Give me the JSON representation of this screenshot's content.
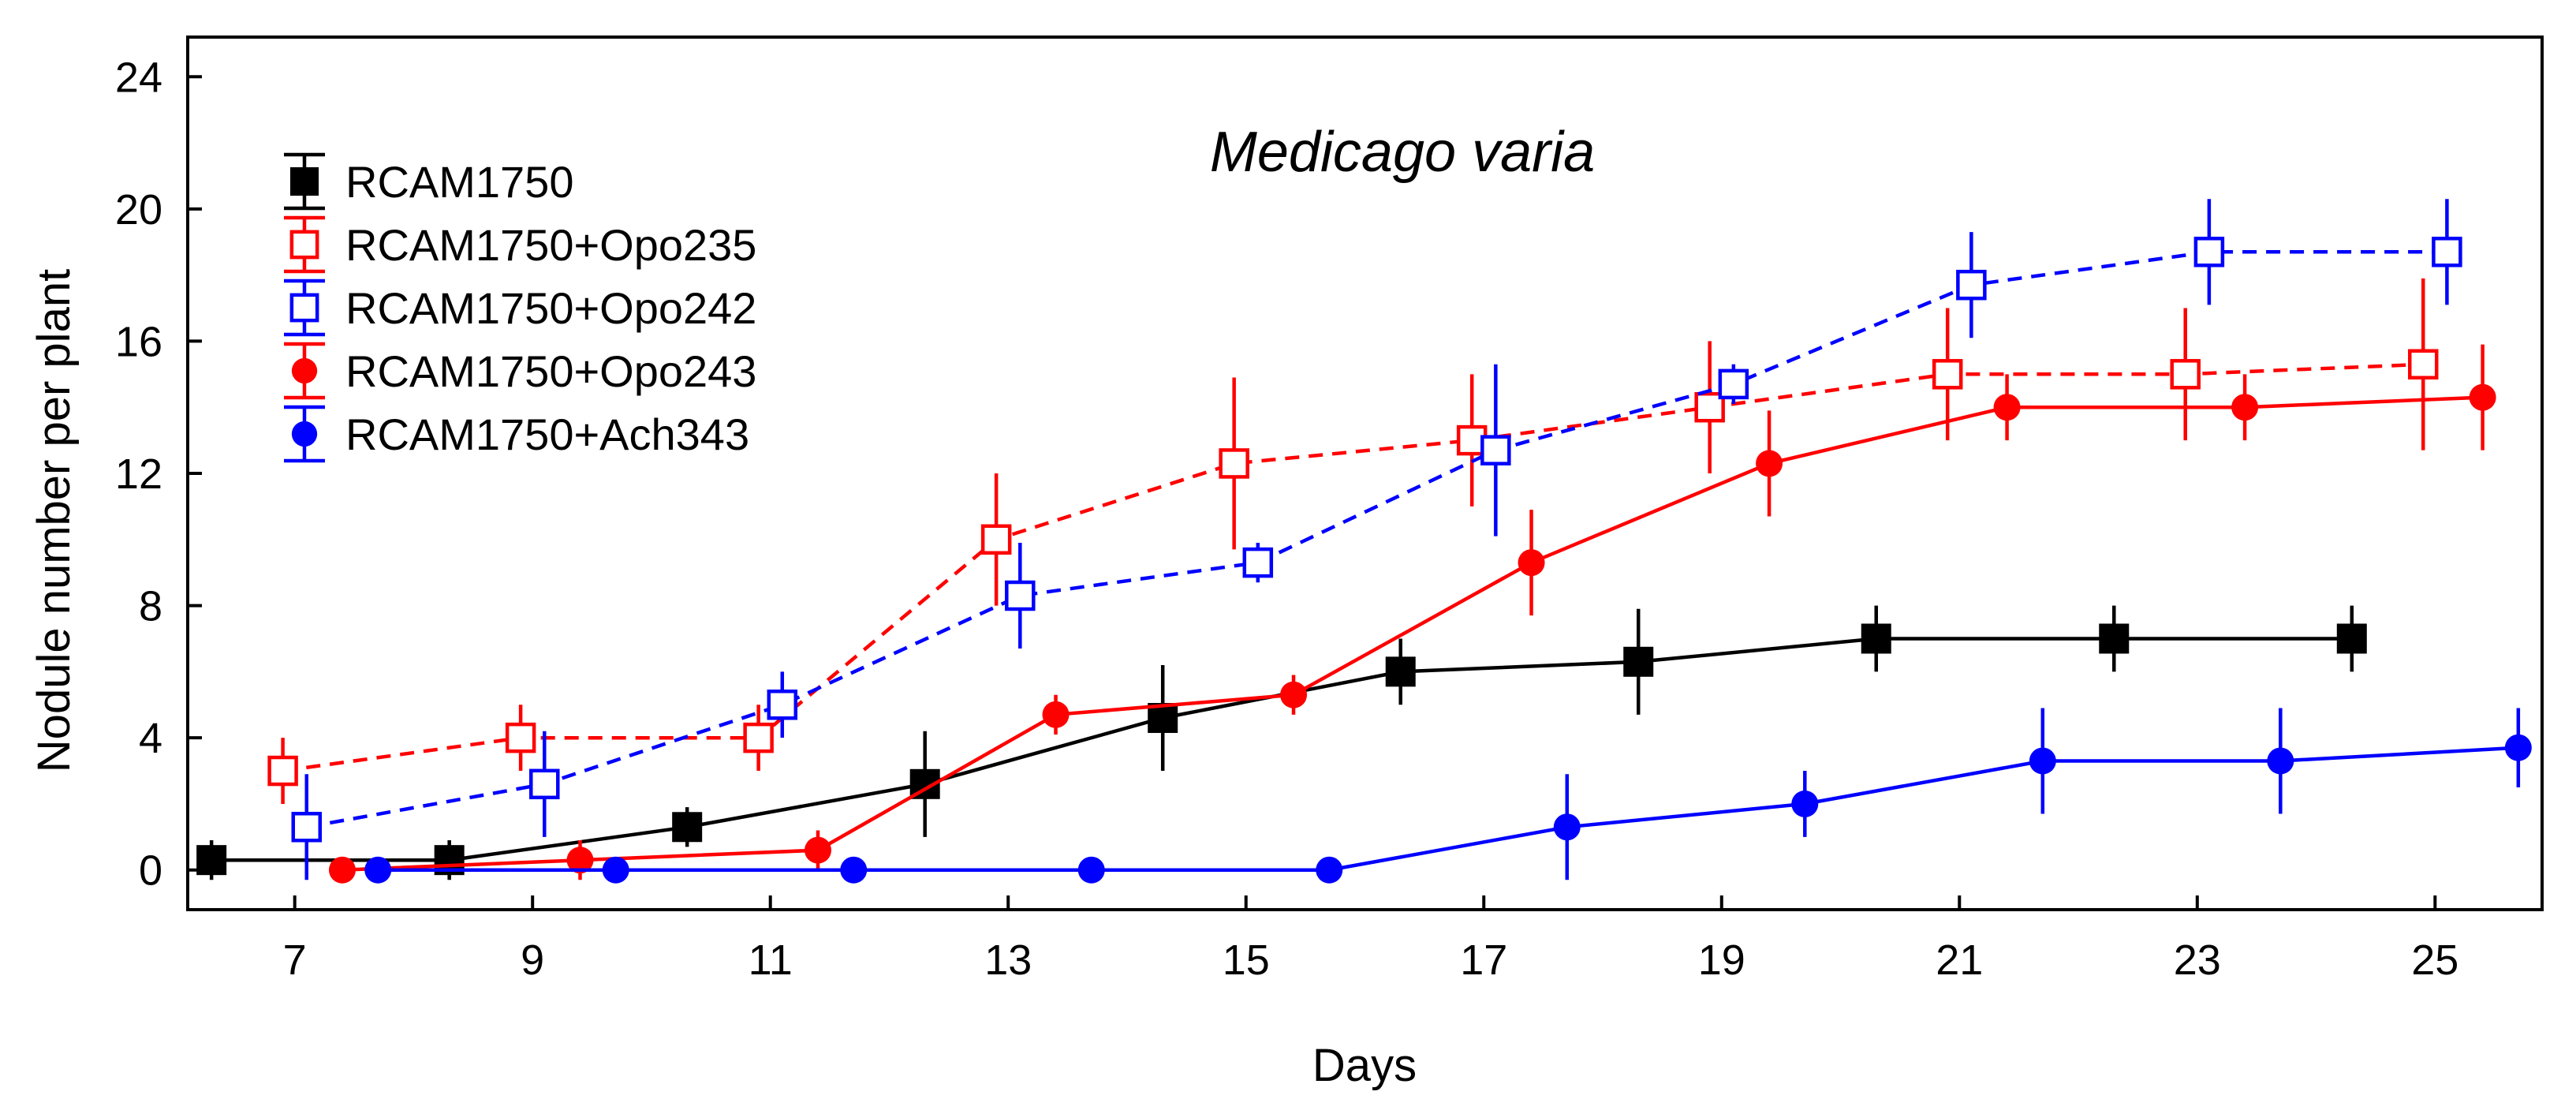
{
  "chart_data": {
    "type": "line",
    "title": "Medicago varia",
    "xlabel": "Days",
    "ylabel": "Nodule number per plant",
    "xlim": [
      6.1,
      25.9
    ],
    "ylim": [
      -1.2,
      25.2
    ],
    "xticks": [
      "7",
      "9",
      "11",
      "13",
      "15",
      "17",
      "19",
      "21",
      "23",
      "25"
    ],
    "yticks": [
      "0",
      "4",
      "8",
      "12",
      "16",
      "20",
      "24"
    ],
    "legend_position": "top-left",
    "grid": false,
    "series": [
      {
        "name": "RCAM1750",
        "color": "#000000",
        "marker": "square-filled",
        "line": "solid",
        "x": [
          6.3,
          8.3,
          10.3,
          12.3,
          14.3,
          16.3,
          18.3,
          20.3,
          22.3,
          24.3
        ],
        "y": [
          0.3,
          0.3,
          1.3,
          2.6,
          4.6,
          6.0,
          6.3,
          7.0,
          7.0,
          7.0
        ],
        "err": [
          0.6,
          0.6,
          0.6,
          1.6,
          1.6,
          1.0,
          1.6,
          1.0,
          1.0,
          1.0
        ]
      },
      {
        "name": "RCAM1750+Opo235",
        "color": "#ff0000",
        "marker": "square-open",
        "line": "dashed",
        "x": [
          6.9,
          8.9,
          10.9,
          12.9,
          14.9,
          16.9,
          18.9,
          20.9,
          22.9,
          24.9
        ],
        "y": [
          3.0,
          4.0,
          4.0,
          10.0,
          12.3,
          13.0,
          14.0,
          15.0,
          15.0,
          15.3
        ],
        "err": [
          1.0,
          1.0,
          1.0,
          2.0,
          2.6,
          2.0,
          2.0,
          2.0,
          2.0,
          2.6
        ]
      },
      {
        "name": "RCAM1750+Opo242",
        "color": "#0000ff",
        "marker": "square-open",
        "line": "dashed",
        "x": [
          7.1,
          9.1,
          11.1,
          13.1,
          15.1,
          17.1,
          19.1,
          21.1,
          23.1,
          25.1
        ],
        "y": [
          1.3,
          2.6,
          5.0,
          8.3,
          9.3,
          12.7,
          14.7,
          17.7,
          18.7,
          18.7
        ],
        "err": [
          1.6,
          1.6,
          1.0,
          1.6,
          0.6,
          2.6,
          0.6,
          1.6,
          1.6,
          1.6
        ]
      },
      {
        "name": "RCAM1750+Opo243",
        "color": "#ff0000",
        "marker": "circle-filled",
        "line": "solid",
        "x": [
          7.4,
          9.4,
          11.4,
          13.4,
          15.4,
          17.4,
          19.4,
          21.4,
          23.4,
          25.4
        ],
        "y": [
          0.0,
          0.3,
          0.6,
          4.7,
          5.3,
          9.3,
          12.3,
          14.0,
          14.0,
          14.3
        ],
        "err": [
          0.0,
          0.6,
          0.6,
          0.6,
          0.6,
          1.6,
          1.6,
          1.0,
          1.0,
          1.6
        ]
      },
      {
        "name": "RCAM1750+Ach343",
        "color": "#0000ff",
        "marker": "circle-filled",
        "line": "solid",
        "x": [
          7.7,
          9.7,
          11.7,
          13.7,
          15.7,
          17.7,
          19.7,
          21.7,
          23.7,
          25.7
        ],
        "y": [
          0.0,
          0.0,
          0.0,
          0.0,
          0.0,
          1.3,
          2.0,
          3.3,
          3.3,
          3.7
        ],
        "err": [
          0.0,
          0.0,
          0.0,
          0.0,
          0.0,
          1.6,
          1.0,
          1.6,
          1.6,
          1.2
        ]
      }
    ]
  }
}
